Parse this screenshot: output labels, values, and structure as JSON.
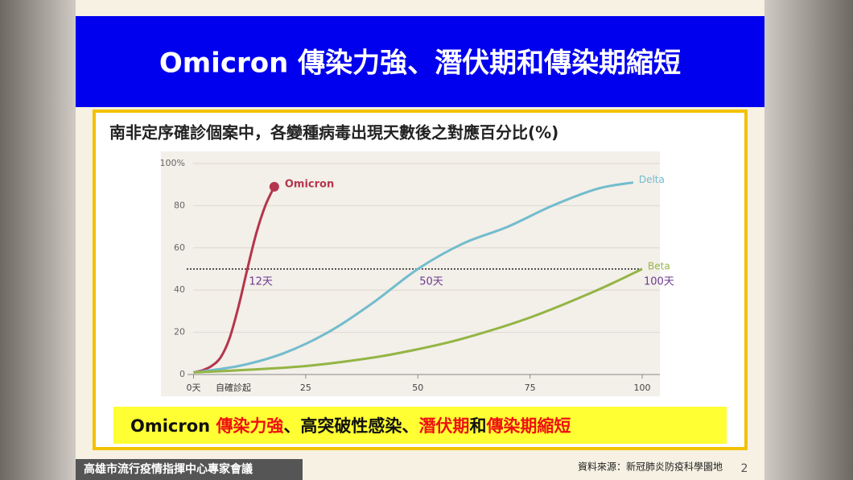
{
  "header": {
    "title": "Omicron 傳染力強、潛伏期和傳染期縮短"
  },
  "subtitle": "南非定序確診個案中，各變種病毒出現天數後之對應百分比(%)",
  "chart_data": {
    "type": "line",
    "xlabel": "自確診起",
    "xlim": [
      0,
      100
    ],
    "ylim": [
      0,
      100
    ],
    "xticks": [
      {
        "value": 0,
        "label": "0天"
      },
      25,
      50,
      75,
      100
    ],
    "yticks": [
      0,
      20,
      40,
      60,
      80,
      {
        "value": 100,
        "label": "100%"
      }
    ],
    "grid": true,
    "threshold": 50,
    "annotations": [
      {
        "text": "12天",
        "x": 12
      },
      {
        "text": "50天",
        "x": 50
      },
      {
        "text": "100天",
        "x": 100
      }
    ],
    "series": [
      {
        "name": "Omicron",
        "color": "#b3364d",
        "x": [
          0,
          2,
          4,
          6,
          8,
          10,
          12,
          14,
          16,
          18
        ],
        "values": [
          1,
          2,
          4,
          8,
          17,
          32,
          50,
          67,
          80,
          89
        ]
      },
      {
        "name": "Delta",
        "color": "#72bccd",
        "x": [
          0,
          10,
          20,
          30,
          40,
          50,
          60,
          70,
          80,
          90,
          98
        ],
        "values": [
          1,
          4,
          10,
          20,
          34,
          50,
          62,
          70,
          80,
          88,
          91
        ]
      },
      {
        "name": "Beta",
        "color": "#93b544",
        "x": [
          0,
          10,
          25,
          40,
          50,
          60,
          75,
          90,
          100
        ],
        "values": [
          1,
          2,
          4,
          8,
          12,
          17,
          27,
          40,
          50
        ]
      }
    ]
  },
  "callout": {
    "parts": [
      "Omicron ",
      "傳染力強",
      "、高突破性感染、",
      "潛伏期",
      "和",
      "傳染期縮短"
    ]
  },
  "footer": {
    "org": "高雄市流行疫情指揮中心專家會議",
    "source": "資料來源：新冠肺炎防疫科學園地",
    "page": "2"
  }
}
